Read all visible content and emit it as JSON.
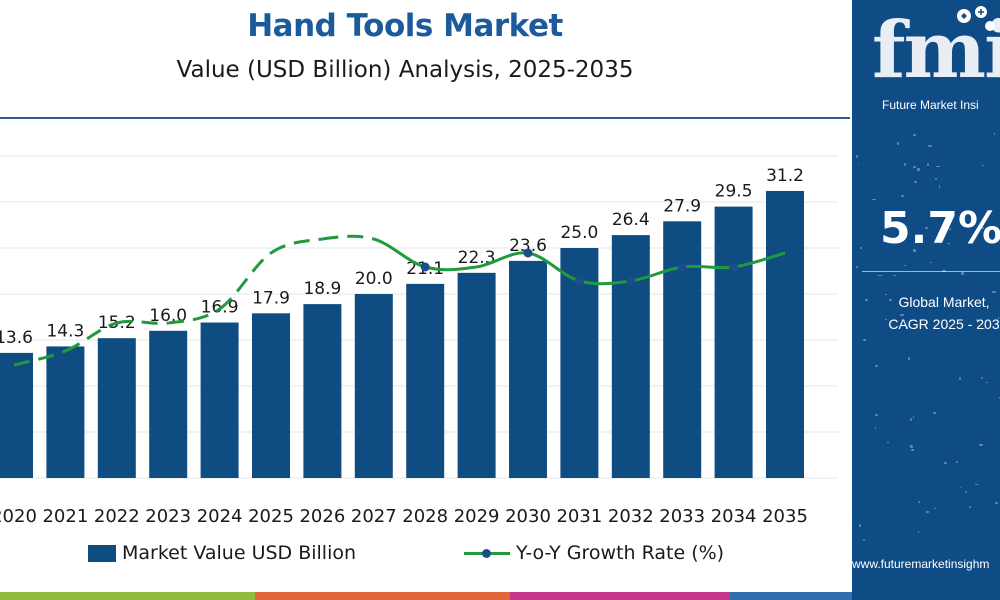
{
  "header": {
    "title": "Hand Tools Market",
    "subtitle": "Value (USD Billion) Analysis, 2025-2035"
  },
  "legend": {
    "bar_label": "Market Value USD Billion",
    "line_label": "Y-o-Y Growth Rate (%)"
  },
  "side_panel": {
    "logo_letters": "fmi",
    "logo_text": "Future Market Insi",
    "cagr_value": "5.7%",
    "cagr_label_line1": "Global Market,",
    "cagr_label_line2": "CAGR 2025 - 203",
    "website": "www.futuremarketinsighm"
  },
  "colors": {
    "bar": "#0f4c81",
    "line": "#1f9a3c",
    "marker": "#1a4d8a",
    "title": "#1c5a9c",
    "panel": "#0f4c86"
  },
  "chart_data": {
    "type": "bar",
    "categories": [
      "2020",
      "2021",
      "2022",
      "2023",
      "2024",
      "2025",
      "2026",
      "2027",
      "2028",
      "2029",
      "2030",
      "2031",
      "2032",
      "2033",
      "2034",
      "2035"
    ],
    "series": [
      {
        "name": "Market Value USD Billion",
        "type": "bar",
        "values": [
          13.6,
          14.3,
          15.2,
          16.0,
          16.9,
          17.9,
          18.9,
          20.0,
          21.1,
          22.3,
          23.6,
          25.0,
          26.4,
          27.9,
          29.5,
          31.2
        ],
        "labels": [
          "13.6",
          "14.3",
          "15.2",
          "16.0",
          "16.9",
          "17.9",
          "18.9",
          "20.0",
          "21.1",
          "22.3",
          "23.6",
          "25.0",
          "26.4",
          "27.9",
          "29.5",
          "31.2"
        ]
      },
      {
        "name": "Y-o-Y Growth Rate (%)",
        "type": "line",
        "values": [
          5.0,
          5.1,
          5.3,
          5.3,
          5.4,
          5.8,
          5.9,
          5.9,
          5.7,
          5.7,
          5.8,
          5.6,
          5.6,
          5.7,
          5.7,
          5.8
        ],
        "segments": [
          "dashed",
          "dashed",
          "dashed",
          "dashed",
          "dashed",
          "dashed",
          "dashed",
          "solid",
          "solid",
          "solid",
          "solid",
          "solid",
          "solid",
          "solid",
          "solid"
        ],
        "markers": [
          false,
          false,
          false,
          false,
          false,
          false,
          false,
          false,
          true,
          false,
          true,
          true,
          true,
          true,
          true,
          false
        ]
      }
    ],
    "ylim": [
      0,
      35
    ],
    "grid": true,
    "legend_position": "bottom"
  }
}
